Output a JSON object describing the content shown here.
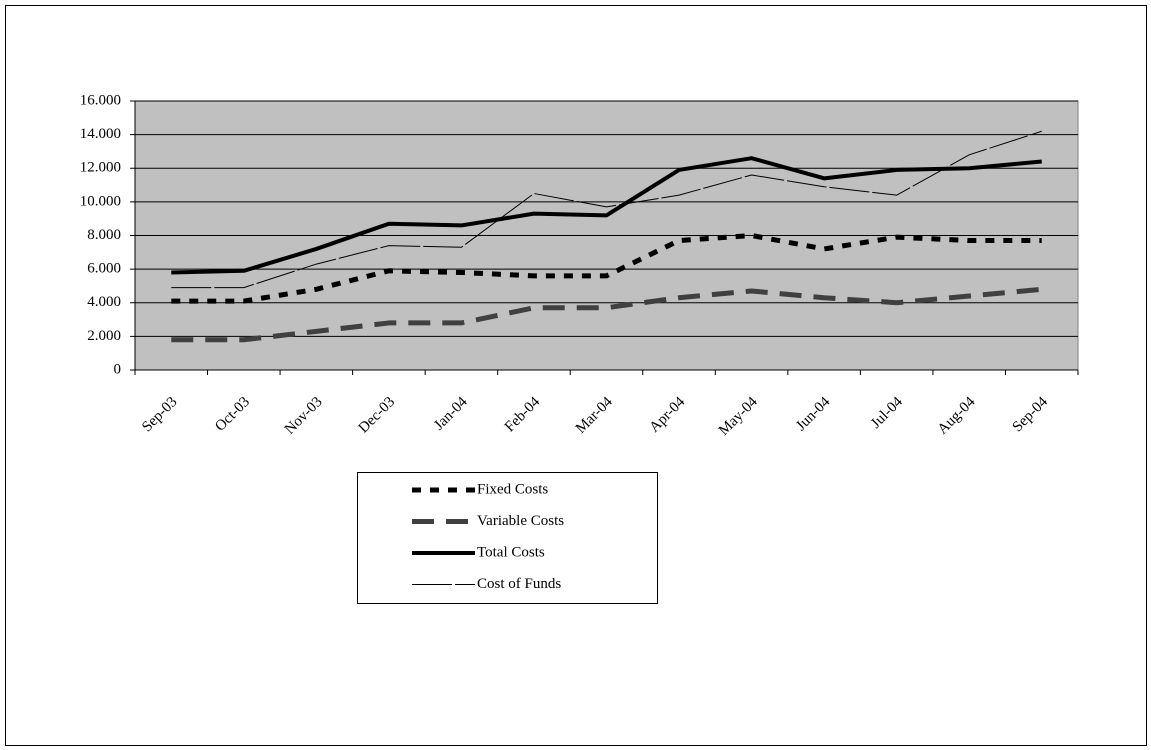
{
  "chart_data": {
    "type": "line",
    "categories": [
      "Sep-03",
      "Oct-03",
      "Nov-03",
      "Dec-03",
      "Jan-04",
      "Feb-04",
      "Mar-04",
      "Apr-04",
      "May-04",
      "Jun-04",
      "Jul-04",
      "Aug-04",
      "Sep-04"
    ],
    "series": [
      {
        "name": "Fixed Costs",
        "color": "#000000",
        "values": [
          4100,
          4100,
          4800,
          5900,
          5800,
          5600,
          5600,
          7700,
          8000,
          7200,
          7900,
          7700,
          7700
        ]
      },
      {
        "name": "Variable Costs",
        "color": "#404040",
        "values": [
          1800,
          1800,
          2300,
          2800,
          2800,
          3700,
          3700,
          4300,
          4700,
          4300,
          4000,
          4400,
          4800
        ]
      },
      {
        "name": "Total Costs",
        "color": "#000000",
        "values": [
          5800,
          5900,
          7200,
          8700,
          8600,
          9300,
          9200,
          11900,
          12600,
          11400,
          11900,
          12000,
          12400
        ]
      },
      {
        "name": "Cost of Funds",
        "color": "#000000",
        "values": [
          4900,
          4900,
          6300,
          7400,
          7300,
          10500,
          9700,
          10400,
          11600,
          10900,
          10400,
          12800,
          14200
        ]
      }
    ],
    "ylim": [
      0,
      16000
    ],
    "yticks": [
      0,
      {
        "value": 2000,
        "label": "2.000"
      },
      {
        "value": 4000,
        "label": "4.000"
      },
      {
        "value": 6000,
        "label": "6.000"
      },
      {
        "value": 8000,
        "label": "8.000"
      },
      {
        "value": 10000,
        "label": "10.000"
      },
      {
        "value": 12000,
        "label": "12.000"
      },
      {
        "value": 14000,
        "label": "14.000"
      },
      {
        "value": 16000,
        "label": "16.000"
      }
    ],
    "grid": true,
    "legend": "bottom"
  }
}
